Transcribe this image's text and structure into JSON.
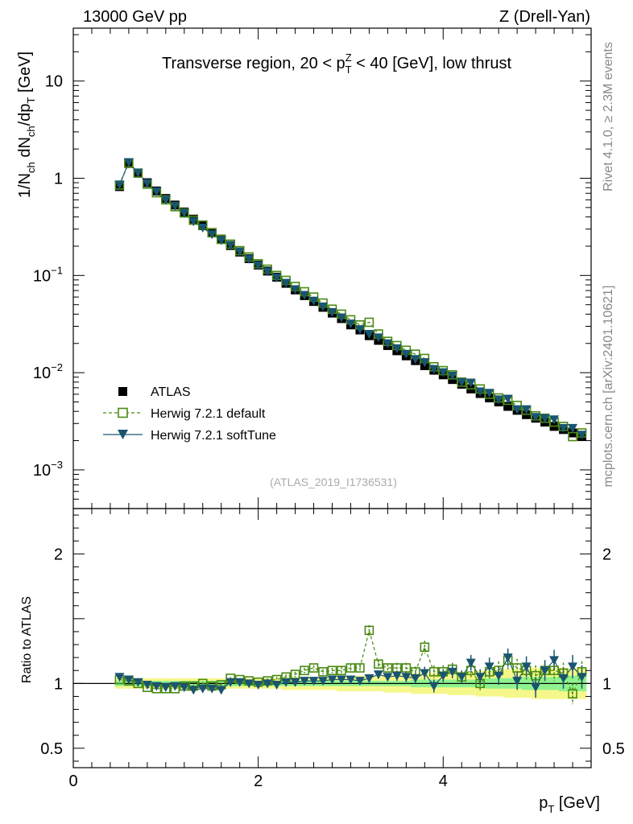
{
  "header": {
    "left": "13000 GeV pp",
    "right": "Z (Drell-Yan)"
  },
  "side_labels": {
    "rivet": "Rivet 4.1.0, ≥ 2.3M events",
    "mcplots": "mcplots.cern.ch [arXiv:2401.10621]"
  },
  "analysis_id": "(ATLAS_2019_I1736531)",
  "colors": {
    "data": "#000000",
    "herwig_default": "#4a8a12",
    "herwig_soft": "#1a5570",
    "band_yellow": "#f6f78a",
    "band_green": "#8ef28e"
  },
  "chart_data": [
    {
      "type": "scatter",
      "panel": "main",
      "title_parts": [
        "Transverse region, 20 < p",
        "Z",
        "T",
        " < 40 [GeV], low thrust"
      ],
      "ylabel_parts": [
        "1/N",
        "ch",
        " dN",
        "ch",
        "/dp",
        "T",
        " [GeV]"
      ],
      "yscale": "log",
      "ylim": [
        0.0004,
        35
      ],
      "xlim": [
        0,
        5.6
      ],
      "yticks": [
        {
          "value": 0.001,
          "base": "10",
          "exp": "−3"
        },
        {
          "value": 0.01,
          "base": "10",
          "exp": "−2"
        },
        {
          "value": 0.1,
          "base": "10",
          "exp": "−1"
        },
        {
          "value": 1,
          "base": "1",
          "exp": ""
        },
        {
          "value": 10,
          "base": "10",
          "exp": ""
        }
      ],
      "x": [
        0.5,
        0.6,
        0.7,
        0.8,
        0.9,
        1.0,
        1.1,
        1.2,
        1.3,
        1.4,
        1.5,
        1.6,
        1.7,
        1.8,
        1.9,
        2.0,
        2.1,
        2.2,
        2.3,
        2.4,
        2.5,
        2.6,
        2.7,
        2.8,
        2.9,
        3.0,
        3.1,
        3.2,
        3.3,
        3.4,
        3.5,
        3.6,
        3.7,
        3.8,
        3.9,
        4.0,
        4.1,
        4.2,
        4.3,
        4.4,
        4.5,
        4.6,
        4.7,
        4.8,
        4.9,
        5.0,
        5.1,
        5.2,
        5.3,
        5.4,
        5.5
      ],
      "legend": [
        {
          "label": "ATLAS",
          "marker": "square-filled"
        },
        {
          "label": "Herwig 7.2.1 default",
          "marker": "square-open",
          "line": "dashed"
        },
        {
          "label": "Herwig 7.2.1 softTune",
          "marker": "triangle-down",
          "line": "solid"
        }
      ],
      "series": [
        {
          "name": "ATLAS",
          "values": [
            0.82,
            1.42,
            1.13,
            0.9,
            0.74,
            0.62,
            0.53,
            0.45,
            0.38,
            0.325,
            0.277,
            0.237,
            0.203,
            0.174,
            0.149,
            0.128,
            0.111,
            0.096,
            0.083,
            0.071,
            0.062,
            0.054,
            0.047,
            0.041,
            0.036,
            0.031,
            0.0275,
            0.024,
            0.0215,
            0.019,
            0.0168,
            0.0149,
            0.0133,
            0.0118,
            0.0106,
            0.0095,
            0.0085,
            0.0076,
            0.0068,
            0.0061,
            0.0055,
            0.005,
            0.0045,
            0.0041,
            0.0037,
            0.0034,
            0.0031,
            0.0028,
            0.0026,
            0.0024,
            0.0022
          ]
        },
        {
          "name": "Herwig 7.2.1 default",
          "values": [
            0.85,
            1.44,
            1.13,
            0.87,
            0.71,
            0.6,
            0.51,
            0.44,
            0.37,
            0.33,
            0.275,
            0.235,
            0.21,
            0.18,
            0.155,
            0.132,
            0.116,
            0.1,
            0.089,
            0.077,
            0.068,
            0.06,
            0.052,
            0.045,
            0.04,
            0.035,
            0.031,
            0.033,
            0.025,
            0.021,
            0.019,
            0.017,
            0.0155,
            0.014,
            0.0115,
            0.0105,
            0.0095,
            0.008,
            0.0075,
            0.0068,
            0.006,
            0.0055,
            0.0052,
            0.0046,
            0.0041,
            0.0036,
            0.0034,
            0.0031,
            0.0028,
            0.0022,
            0.0024
          ]
        },
        {
          "name": "Herwig 7.2.1 softTune",
          "values": [
            0.86,
            1.46,
            1.14,
            0.89,
            0.73,
            0.6,
            0.52,
            0.44,
            0.36,
            0.31,
            0.265,
            0.23,
            0.205,
            0.176,
            0.148,
            0.127,
            0.11,
            0.095,
            0.084,
            0.072,
            0.063,
            0.055,
            0.048,
            0.042,
            0.037,
            0.032,
            0.028,
            0.025,
            0.023,
            0.02,
            0.0178,
            0.0156,
            0.0138,
            0.0128,
            0.0109,
            0.0101,
            0.0093,
            0.008,
            0.0079,
            0.0064,
            0.0062,
            0.0053,
            0.0054,
            0.0042,
            0.0042,
            0.0035,
            0.0034,
            0.0033,
            0.0027,
            0.0027,
            0.0023
          ]
        }
      ]
    },
    {
      "type": "scatter",
      "panel": "ratio",
      "ylabel": "Ratio to ATLAS",
      "xlabel_parts": [
        "p",
        "T",
        " [GeV]"
      ],
      "xlim": [
        0,
        5.6
      ],
      "ylim": [
        0.35,
        2.35
      ],
      "xticks": [
        0,
        2,
        4
      ],
      "yticks": [
        0.5,
        1,
        2
      ],
      "x": [
        0.5,
        0.6,
        0.7,
        0.8,
        0.9,
        1.0,
        1.1,
        1.2,
        1.3,
        1.4,
        1.5,
        1.6,
        1.7,
        1.8,
        1.9,
        2.0,
        2.1,
        2.2,
        2.3,
        2.4,
        2.5,
        2.6,
        2.7,
        2.8,
        2.9,
        3.0,
        3.1,
        3.2,
        3.3,
        3.4,
        3.5,
        3.6,
        3.7,
        3.8,
        3.9,
        4.0,
        4.1,
        4.2,
        4.3,
        4.4,
        4.5,
        4.6,
        4.7,
        4.8,
        4.9,
        5.0,
        5.1,
        5.2,
        5.3,
        5.4,
        5.5
      ],
      "band_green_halfwidth": [
        0.02,
        0.02,
        0.02,
        0.02,
        0.02,
        0.02,
        0.02,
        0.02,
        0.02,
        0.02,
        0.02,
        0.02,
        0.02,
        0.02,
        0.02,
        0.02,
        0.02,
        0.02,
        0.02,
        0.02,
        0.02,
        0.02,
        0.02,
        0.02,
        0.02,
        0.02,
        0.02,
        0.02,
        0.02,
        0.02,
        0.02,
        0.02,
        0.03,
        0.03,
        0.03,
        0.03,
        0.03,
        0.03,
        0.03,
        0.03,
        0.04,
        0.04,
        0.04,
        0.04,
        0.05,
        0.05,
        0.05,
        0.05,
        0.06,
        0.06,
        0.06
      ],
      "band_yellow_halfwidth": [
        0.04,
        0.04,
        0.04,
        0.04,
        0.04,
        0.04,
        0.04,
        0.04,
        0.04,
        0.04,
        0.04,
        0.04,
        0.04,
        0.04,
        0.04,
        0.04,
        0.04,
        0.04,
        0.05,
        0.05,
        0.05,
        0.05,
        0.05,
        0.05,
        0.06,
        0.06,
        0.06,
        0.06,
        0.06,
        0.07,
        0.07,
        0.07,
        0.08,
        0.08,
        0.08,
        0.08,
        0.09,
        0.09,
        0.09,
        0.1,
        0.1,
        0.1,
        0.11,
        0.11,
        0.11,
        0.12,
        0.12,
        0.12,
        0.12,
        0.12,
        0.12
      ],
      "series": [
        {
          "name": "Herwig 7.2.1 default",
          "values": [
            1.03,
            1.02,
            1.0,
            0.97,
            0.96,
            0.96,
            0.96,
            0.98,
            0.98,
            1.0,
            0.98,
            0.99,
            1.04,
            1.03,
            1.02,
            1.01,
            1.02,
            1.03,
            1.05,
            1.07,
            1.1,
            1.12,
            1.09,
            1.1,
            1.1,
            1.12,
            1.12,
            1.41,
            1.15,
            1.12,
            1.12,
            1.12,
            1.09,
            1.28,
            1.09,
            1.09,
            1.11,
            1.05,
            1.1,
            1.0,
            1.09,
            1.1,
            1.18,
            1.12,
            1.1,
            1.06,
            1.1,
            1.1,
            1.08,
            0.92,
            1.09
          ],
          "errors": [
            0.01,
            0.01,
            0.01,
            0.01,
            0.01,
            0.01,
            0.01,
            0.01,
            0.01,
            0.01,
            0.01,
            0.01,
            0.01,
            0.01,
            0.01,
            0.01,
            0.02,
            0.02,
            0.02,
            0.02,
            0.02,
            0.02,
            0.02,
            0.02,
            0.03,
            0.03,
            0.03,
            0.04,
            0.03,
            0.03,
            0.04,
            0.04,
            0.04,
            0.05,
            0.05,
            0.05,
            0.05,
            0.05,
            0.06,
            0.06,
            0.06,
            0.07,
            0.07,
            0.07,
            0.07,
            0.08,
            0.08,
            0.08,
            0.08,
            0.08,
            0.08
          ]
        },
        {
          "name": "Herwig 7.2.1 softTune",
          "values": [
            1.05,
            1.03,
            1.01,
            0.99,
            0.98,
            0.97,
            0.98,
            0.97,
            0.95,
            0.96,
            0.96,
            0.95,
            1.01,
            1.01,
            1.0,
            0.99,
            1.0,
            0.99,
            1.01,
            1.01,
            1.02,
            1.02,
            1.02,
            1.03,
            1.03,
            1.03,
            1.02,
            1.04,
            1.07,
            1.05,
            1.06,
            1.05,
            1.04,
            1.08,
            0.98,
            1.06,
            1.09,
            1.05,
            1.16,
            1.05,
            1.13,
            1.06,
            1.2,
            1.02,
            1.13,
            0.97,
            1.1,
            1.18,
            1.04,
            1.13,
            1.05
          ],
          "errors": [
            0.01,
            0.01,
            0.01,
            0.01,
            0.01,
            0.01,
            0.01,
            0.01,
            0.01,
            0.01,
            0.01,
            0.01,
            0.01,
            0.01,
            0.01,
            0.01,
            0.02,
            0.02,
            0.02,
            0.02,
            0.02,
            0.02,
            0.02,
            0.02,
            0.03,
            0.03,
            0.03,
            0.03,
            0.03,
            0.03,
            0.04,
            0.04,
            0.04,
            0.05,
            0.05,
            0.05,
            0.05,
            0.05,
            0.06,
            0.06,
            0.07,
            0.07,
            0.07,
            0.07,
            0.08,
            0.08,
            0.08,
            0.08,
            0.08,
            0.09,
            0.09
          ]
        }
      ]
    }
  ]
}
